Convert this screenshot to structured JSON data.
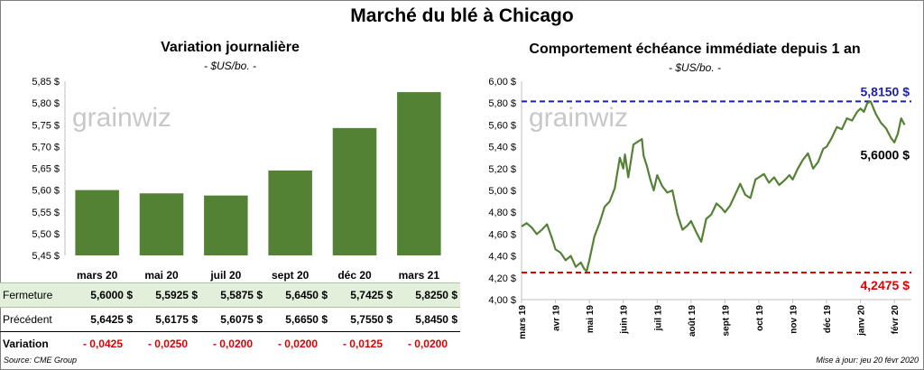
{
  "title": "Marché du blé à Chicago",
  "left": {
    "title": "Variation  journalière",
    "subtitle": "- $US/bo. -",
    "watermark": "grainwiz",
    "row_labels": {
      "close": "Fermeture",
      "prev": "Précédent",
      "var": "Variation"
    }
  },
  "right": {
    "title": "Comportement  échéance immédiate depuis 1 an",
    "subtitle": "- $US/bo. -",
    "watermark": "grainwiz"
  },
  "source": "Source: CME Group",
  "updated": "Mise à jour: jeu 20 févr 2020",
  "colors": {
    "bar": "#548235",
    "line": "#548235",
    "max_line": "#1f1fa8",
    "min_line": "#e00000",
    "close_row_bg": "#e2efda",
    "variation": "#e00000"
  },
  "chart_data": [
    {
      "type": "bar",
      "title": "Variation  journalière",
      "subtitle": "- $US/bo. -",
      "categories": [
        "mars 20",
        "mai 20",
        "juil 20",
        "sept 20",
        "déc 20",
        "mars 21"
      ],
      "values": [
        5.6,
        5.5925,
        5.5875,
        5.645,
        5.7425,
        5.825
      ],
      "value_labels": [
        "5,6000  $",
        "5,5925  $",
        "5,5875  $",
        "5,6450  $",
        "5,7425  $",
        "5,8250  $"
      ],
      "previous_labels": [
        "5,6425  $",
        "5,6175  $",
        "5,6075  $",
        "5,6650  $",
        "5,7550  $",
        "5,8450  $"
      ],
      "variation_labels": [
        "- 0,0425",
        "- 0,0250",
        "- 0,0200",
        "- 0,0200",
        "- 0,0125",
        "- 0,0200"
      ],
      "ylim": [
        5.45,
        5.85
      ],
      "yticks": [
        5.45,
        5.5,
        5.55,
        5.6,
        5.65,
        5.7,
        5.75,
        5.8,
        5.85
      ],
      "ytick_labels": [
        "5,45 $",
        "5,50 $",
        "5,55 $",
        "5,60 $",
        "5,65 $",
        "5,70 $",
        "5,75 $",
        "5,80 $",
        "5,85 $"
      ],
      "grid": false
    },
    {
      "type": "line",
      "title": "Comportement  échéance immédiate depuis 1 an",
      "subtitle": "- $US/bo. -",
      "x_labels": [
        "mars 19",
        "avr 19",
        "mai 19",
        "juin 19",
        "juil 19",
        "août 19",
        "sept 19",
        "oct 19",
        "nov 19",
        "déc 19",
        "janv 20",
        "févr 20"
      ],
      "ylim": [
        4.0,
        6.0
      ],
      "yticks": [
        4.0,
        4.2,
        4.4,
        4.6,
        4.8,
        5.0,
        5.2,
        5.4,
        5.6,
        5.8,
        6.0
      ],
      "ytick_labels": [
        "4,00 $",
        "4,20 $",
        "4,40 $",
        "4,60 $",
        "4,80 $",
        "5,00 $",
        "5,20 $",
        "5,40 $",
        "5,60 $",
        "5,80 $",
        "6,00 $"
      ],
      "max": {
        "value": 5.815,
        "label": "5,8150  $"
      },
      "min": {
        "value": 4.2475,
        "label": "4,2475  $"
      },
      "last": {
        "value": 5.6,
        "label": "5,6000 $"
      },
      "series": [
        {
          "points": [
            [
              0,
              4.67
            ],
            [
              0.15,
              4.7
            ],
            [
              0.3,
              4.66
            ],
            [
              0.45,
              4.6
            ],
            [
              0.6,
              4.64
            ],
            [
              0.75,
              4.69
            ],
            [
              0.9,
              4.56
            ],
            [
              1.0,
              4.46
            ],
            [
              1.15,
              4.43
            ],
            [
              1.3,
              4.36
            ],
            [
              1.45,
              4.4
            ],
            [
              1.6,
              4.3
            ],
            [
              1.75,
              4.34
            ],
            [
              1.85,
              4.28
            ],
            [
              1.92,
              4.26
            ],
            [
              2.0,
              4.36
            ],
            [
              2.15,
              4.58
            ],
            [
              2.3,
              4.7
            ],
            [
              2.45,
              4.85
            ],
            [
              2.6,
              4.9
            ],
            [
              2.75,
              5.02
            ],
            [
              2.9,
              5.3
            ],
            [
              3.0,
              5.2
            ],
            [
              3.05,
              5.33
            ],
            [
              3.15,
              5.12
            ],
            [
              3.3,
              5.42
            ],
            [
              3.45,
              5.45
            ],
            [
              3.55,
              5.47
            ],
            [
              3.6,
              5.32
            ],
            [
              3.7,
              5.22
            ],
            [
              3.8,
              5.1
            ],
            [
              3.9,
              5.0
            ],
            [
              4.0,
              5.14
            ],
            [
              4.15,
              5.04
            ],
            [
              4.3,
              4.98
            ],
            [
              4.45,
              5.0
            ],
            [
              4.6,
              4.78
            ],
            [
              4.75,
              4.64
            ],
            [
              4.9,
              4.68
            ],
            [
              5.0,
              4.72
            ],
            [
              5.15,
              4.62
            ],
            [
              5.3,
              4.53
            ],
            [
              5.45,
              4.74
            ],
            [
              5.6,
              4.78
            ],
            [
              5.75,
              4.88
            ],
            [
              5.9,
              4.84
            ],
            [
              6.0,
              4.8
            ],
            [
              6.15,
              4.86
            ],
            [
              6.3,
              4.96
            ],
            [
              6.45,
              5.06
            ],
            [
              6.6,
              4.96
            ],
            [
              6.75,
              4.93
            ],
            [
              6.9,
              5.1
            ],
            [
              7.0,
              5.12
            ],
            [
              7.15,
              5.15
            ],
            [
              7.3,
              5.07
            ],
            [
              7.45,
              5.12
            ],
            [
              7.6,
              5.05
            ],
            [
              7.75,
              5.09
            ],
            [
              7.9,
              5.14
            ],
            [
              8.0,
              5.1
            ],
            [
              8.15,
              5.2
            ],
            [
              8.3,
              5.28
            ],
            [
              8.45,
              5.34
            ],
            [
              8.6,
              5.2
            ],
            [
              8.75,
              5.26
            ],
            [
              8.9,
              5.38
            ],
            [
              9.0,
              5.4
            ],
            [
              9.15,
              5.48
            ],
            [
              9.3,
              5.58
            ],
            [
              9.45,
              5.56
            ],
            [
              9.6,
              5.66
            ],
            [
              9.75,
              5.64
            ],
            [
              9.9,
              5.72
            ],
            [
              10.0,
              5.75
            ],
            [
              10.1,
              5.72
            ],
            [
              10.2,
              5.8
            ],
            [
              10.3,
              5.815
            ],
            [
              10.45,
              5.7
            ],
            [
              10.6,
              5.62
            ],
            [
              10.75,
              5.57
            ],
            [
              10.9,
              5.48
            ],
            [
              11.0,
              5.44
            ],
            [
              11.1,
              5.52
            ],
            [
              11.2,
              5.66
            ],
            [
              11.3,
              5.6
            ]
          ]
        }
      ]
    }
  ]
}
